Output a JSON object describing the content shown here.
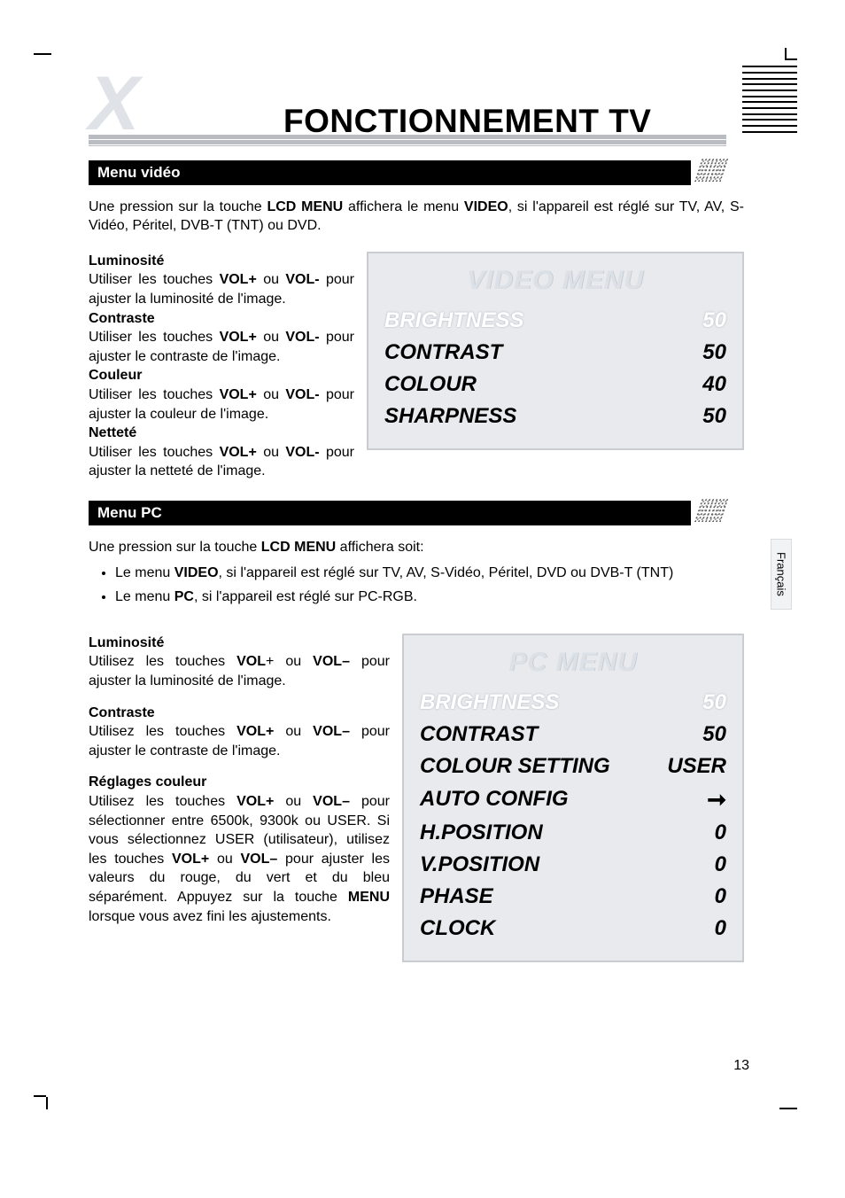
{
  "logo_char": "X",
  "page_title": "FONCTIONNEMENT TV",
  "language_tab": "Français",
  "page_number": "13",
  "section1": {
    "header": "Menu  vidéo",
    "intro_1": "Une pression sur la touche ",
    "intro_b1": "LCD MENU",
    "intro_2": " affichera le menu ",
    "intro_b2": "VIDEO",
    "intro_3": ", si l'appareil est réglé sur TV, AV, S-Vidéo, Péritel, DVB-T (TNT) ou DVD.",
    "items": {
      "luminosite_h": "Luminosité",
      "luminosite_1": "Utiliser les touches ",
      "luminosite_b1": "VOL+",
      "luminosite_2": " ou ",
      "luminosite_b2": "VOL-",
      "luminosite_3": " pour ajuster la luminosité de l'image.",
      "contraste_h": "Contraste",
      "contraste_1": "Utiliser les touches ",
      "contraste_b1": "VOL+",
      "contraste_2": " ou ",
      "contraste_b2": "VOL-",
      "contraste_3": " pour ajuster le contraste de l'image.",
      "couleur_h": "Couleur",
      "couleur_1": "Utiliser les touches ",
      "couleur_b1": "VOL+",
      "couleur_2": " ou ",
      "couleur_b2": "VOL-",
      "couleur_3": " pour ajuster la couleur de l'image.",
      "nettete_h": "Netteté",
      "nettete_1": "Utiliser les touches ",
      "nettete_b1": "VOL+",
      "nettete_2": " ou ",
      "nettete_b2": "VOL-",
      "nettete_3": " pour ajuster la netteté de l'image."
    }
  },
  "video_menu": {
    "title": "VIDEO MENU",
    "rows": [
      {
        "label": "BRIGHTNESS",
        "value": "50",
        "selected": true
      },
      {
        "label": "CONTRAST",
        "value": "50",
        "selected": false
      },
      {
        "label": "COLOUR",
        "value": "40",
        "selected": false
      },
      {
        "label": "SHARPNESS",
        "value": "50",
        "selected": false
      }
    ],
    "box_border": "#c9cdd2",
    "box_bg": "#e8eaed",
    "title_color": "#dce1e7",
    "selected_color": "#ffffff",
    "text_color": "#000000",
    "font_style": "italic-bold"
  },
  "section2": {
    "header": "Menu PC",
    "intro_1": "Une pression sur la touche ",
    "intro_b1": "LCD MENU",
    "intro_2": " affichera soit:",
    "bullet1_1": "Le menu ",
    "bullet1_b": "VIDEO",
    "bullet1_2": ", si l'appareil est réglé sur TV, AV, S-Vidéo, Péritel, DVD ou DVB-T (TNT)",
    "bullet2_1": "Le menu ",
    "bullet2_b": "PC",
    "bullet2_2": ", si l'appareil est réglé sur PC-RGB.",
    "items": {
      "luminosite_h": "Luminosité",
      "luminosite_1": "Utilisez les touches ",
      "luminosite_b1": "VOL",
      "luminosite_2": "+ ou ",
      "luminosite_b2": "VOL–",
      "luminosite_3": " pour ajuster la luminosité de l'image.",
      "contraste_h": "Contraste",
      "contraste_1": "Utilisez les touches ",
      "contraste_b1": "VOL+",
      "contraste_2": " ou ",
      "contraste_b2": "VOL–",
      "contraste_3": " pour ajuster le contraste de l'image.",
      "reglages_h": "Réglages couleur",
      "reglages_1": "Utilisez les touches ",
      "reglages_b1": "VOL+",
      "reglages_2": " ou ",
      "reglages_b2": "VOL–",
      "reglages_3": " pour sélectionner entre 6500k, 9300k ou USER. Si vous sélectionnez USER (utilisateur), utilisez les touches ",
      "reglages_b3": "VOL+",
      "reglages_4": " ou ",
      "reglages_b4": "VOL–",
      "reglages_5": " pour ajuster les valeurs du rouge, du vert et du bleu séparément. Appuyez sur la touche ",
      "reglages_b5": "MENU",
      "reglages_6": " lorsque vous avez fini les ajustements."
    }
  },
  "pc_menu": {
    "title": "PC MENU",
    "rows": [
      {
        "label": "BRIGHTNESS",
        "value": "50",
        "selected": true,
        "arrow": false
      },
      {
        "label": "CONTRAST",
        "value": "50",
        "selected": false,
        "arrow": false
      },
      {
        "label": "COLOUR SETTING",
        "value": "USER",
        "selected": false,
        "arrow": false
      },
      {
        "label": "AUTO CONFIG",
        "value": "➞",
        "selected": false,
        "arrow": true
      },
      {
        "label": "H.POSITION",
        "value": "0",
        "selected": false,
        "arrow": false
      },
      {
        "label": "V.POSITION",
        "value": "0",
        "selected": false,
        "arrow": false
      },
      {
        "label": "PHASE",
        "value": "0",
        "selected": false,
        "arrow": false
      },
      {
        "label": "CLOCK",
        "value": "0",
        "selected": false,
        "arrow": false
      }
    ],
    "box_border": "#c9cdd2",
    "box_bg": "#e8eaed",
    "title_color": "#dce1e7",
    "selected_color": "#ffffff",
    "text_color": "#000000"
  }
}
